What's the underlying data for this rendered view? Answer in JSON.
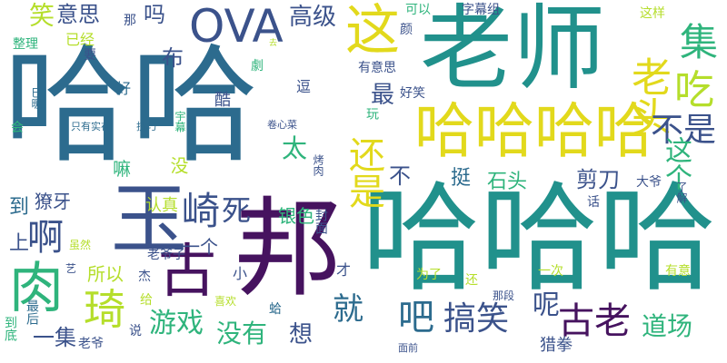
{
  "palette": {
    "dark_purple": "#46135f",
    "indigo": "#3b528b",
    "slate_blue": "#2c6b8e",
    "teal": "#21918c",
    "sea_green": "#2fb47c",
    "green": "#6ece58",
    "lime": "#b5de2b",
    "yellow": "#e2d91c"
  },
  "words": [
    "哈哈",
    "老师",
    "哈哈哈",
    "邦",
    "哈哈哈哈",
    "玉",
    "OVA",
    "这",
    "古",
    "肉",
    "琦",
    "崎",
    "死",
    "吃",
    "老头",
    "集",
    "不是",
    "这个",
    "还是",
    "啊",
    "搞笑",
    "吧",
    "古老",
    "就",
    "呢",
    "道场",
    "游戏",
    "没有",
    "石头",
    "剪刀",
    "笑",
    "意思",
    "吗",
    "高级",
    "布",
    "最",
    "一集",
    "所以",
    "银色",
    "认真",
    "太",
    "猎拳",
    "想",
    "挺",
    "不",
    "到",
    "獠牙",
    "上",
    "一个",
    "没",
    "嘛",
    "好",
    "酷",
    "逗",
    "好笑",
    "有意思",
    "可以",
    "字幕组",
    "这样",
    "那",
    "已经",
    "要",
    "整理",
    "只有实在",
    "技巧",
    "宇幕",
    "卷心菜",
    "劇",
    "颜",
    "去",
    "巳暖",
    "会",
    "玩",
    "烤肉",
    "封面",
    "大爷",
    "了解",
    "话",
    "为了",
    "还",
    "一次",
    "有意",
    "那段",
    "蛤",
    "小",
    "才",
    "杰",
    "艺",
    "给",
    "喜欢",
    "老爷子",
    "虽然",
    "说",
    "最后",
    "到底",
    "老爷",
    "面前"
  ]
}
